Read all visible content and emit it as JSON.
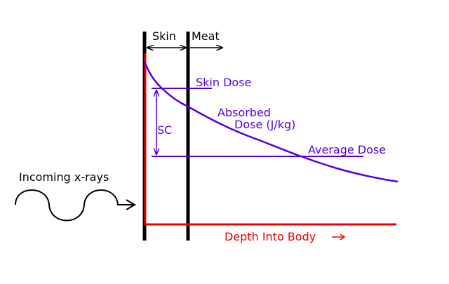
{
  "labels": {
    "skin": "Skin",
    "meat": "Meat",
    "skin_dose": "Skin Dose",
    "absorbed_line1": "Absorbed",
    "absorbed_line2": "Dose (J/kg)",
    "sc": "SC",
    "average_dose": "Average Dose",
    "incoming": "Incoming x-rays",
    "depth": "Depth Into Body"
  },
  "colors": {
    "ink": "#000000",
    "dose": "#5500dd",
    "axis": "#ee0000"
  },
  "icons": {
    "incoming": "sine-wave-arrow-icon",
    "depth": "right-arrow-icon"
  }
}
